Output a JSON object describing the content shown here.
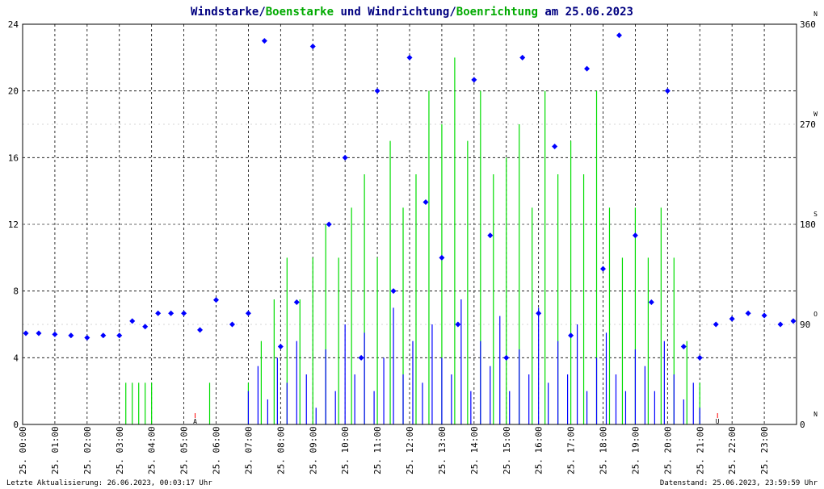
{
  "title": {
    "part1": "Windstarke",
    "sep1": "/",
    "part2": "Boenstarke",
    "part3": " und ",
    "part4": "Windrichtung",
    "sep2": "/",
    "part5": "Boenrichtung",
    "part6": " am 25.06.2023"
  },
  "colors": {
    "wind": "#0000ff",
    "gust": "#00dd00",
    "title_dark": "#000080",
    "title_green": "#00aa00",
    "marker": "#ff0000",
    "grid": "#000000"
  },
  "footer": {
    "left": "Letzte Aktualisierung: 26.06.2023, 00:03:17 Uhr",
    "right": "Datenstand: 25.06.2023, 23:59:59 Uhr"
  },
  "chart_data": {
    "type": "line",
    "x_range": [
      0,
      24
    ],
    "x_ticks": [
      "25. 00:00",
      "25. 01:00",
      "25. 02:00",
      "25. 03:00",
      "25. 04:00",
      "25. 05:00",
      "25. 06:00",
      "25. 07:00",
      "25. 08:00",
      "25. 09:00",
      "25. 10:00",
      "25. 11:00",
      "25. 12:00",
      "25. 13:00",
      "25. 14:00",
      "25. 15:00",
      "25. 16:00",
      "25. 17:00",
      "25. 18:00",
      "25. 19:00",
      "25. 20:00",
      "25. 21:00",
      "25. 22:00",
      "25. 23:00"
    ],
    "y_left": {
      "range": [
        0,
        24
      ],
      "ticks": [
        "0",
        "4",
        "8",
        "12",
        "16",
        "20",
        "24"
      ]
    },
    "y_right": {
      "range": [
        0,
        360
      ],
      "ticks": [
        {
          "value": 0,
          "label": "0",
          "dir": "N"
        },
        {
          "value": 90,
          "label": "90",
          "dir": "O"
        },
        {
          "value": 180,
          "label": "180",
          "dir": "S"
        },
        {
          "value": 270,
          "label": "270",
          "dir": "W"
        },
        {
          "value": 360,
          "label": "360",
          "dir": "N"
        }
      ]
    },
    "grid": true,
    "markers": [
      {
        "hour": 5.35,
        "label": "A"
      },
      {
        "hour": 21.55,
        "label": "U"
      }
    ],
    "series": [
      {
        "name": "Windstarke",
        "color": "#0000ff",
        "x": [
          7.0,
          7.3,
          7.6,
          7.9,
          8.2,
          8.5,
          8.8,
          9.1,
          9.4,
          9.7,
          10.0,
          10.3,
          10.6,
          10.9,
          11.2,
          11.5,
          11.8,
          12.1,
          12.4,
          12.7,
          13.0,
          13.3,
          13.6,
          13.9,
          14.2,
          14.5,
          14.8,
          15.1,
          15.4,
          15.7,
          16.0,
          16.3,
          16.6,
          16.9,
          17.2,
          17.5,
          17.8,
          18.1,
          18.4,
          18.7,
          19.0,
          19.3,
          19.6,
          19.9,
          20.2,
          20.5,
          20.8,
          21.0
        ],
        "values": [
          2,
          3.5,
          1.5,
          4,
          2.5,
          5,
          3,
          1,
          4.5,
          2,
          6,
          3,
          5.5,
          2,
          4,
          7,
          3,
          5,
          2.5,
          6,
          4,
          3,
          7.5,
          2,
          5,
          3.5,
          6.5,
          2,
          4.5,
          3,
          7,
          2.5,
          5,
          3,
          6,
          2,
          4,
          5.5,
          3,
          2,
          4.5,
          3.5,
          2,
          5,
          3,
          1.5,
          2.5,
          1
        ]
      },
      {
        "name": "Boenstarke",
        "color": "#00dd00",
        "x": [
          3.2,
          3.4,
          3.6,
          3.8,
          4.0,
          5.8,
          7.0,
          7.4,
          7.8,
          8.2,
          8.6,
          9.0,
          9.4,
          9.8,
          10.2,
          10.6,
          11.0,
          11.4,
          11.8,
          12.2,
          12.6,
          13.0,
          13.4,
          13.8,
          14.2,
          14.6,
          15.0,
          15.4,
          15.8,
          16.2,
          16.6,
          17.0,
          17.4,
          17.8,
          18.2,
          18.6,
          19.0,
          19.4,
          19.8,
          20.2,
          20.6,
          21.0
        ],
        "values": [
          2.5,
          2.5,
          2.5,
          2.5,
          2.5,
          2.5,
          2.5,
          5,
          7.5,
          10,
          7.5,
          10,
          12,
          10,
          13,
          15,
          10,
          17,
          13,
          15,
          20,
          18,
          22,
          17,
          20,
          15,
          16,
          18,
          13,
          20,
          15,
          17,
          15,
          20,
          13,
          10,
          13,
          10,
          13,
          10,
          5,
          2.5
        ]
      },
      {
        "name": "Windrichtung",
        "color": "#0000ff",
        "x": [
          0.1,
          0.5,
          1.0,
          1.5,
          2.0,
          2.5,
          3.0,
          3.4,
          3.8,
          4.2,
          4.6,
          5.0,
          5.5,
          6.0,
          6.5,
          7.0,
          7.5,
          8.0,
          8.5,
          9.0,
          9.5,
          10.0,
          10.5,
          11.0,
          11.5,
          12.0,
          12.5,
          13.0,
          13.5,
          14.0,
          14.5,
          15.0,
          15.5,
          16.0,
          16.5,
          17.0,
          17.5,
          18.0,
          18.5,
          19.0,
          19.5,
          20.0,
          20.5,
          21.0,
          21.5,
          22.0,
          22.5,
          23.0,
          23.5,
          23.9
        ],
        "values": [
          82,
          82,
          81,
          80,
          78,
          80,
          80,
          93,
          88,
          100,
          100,
          100,
          85,
          112,
          90,
          100,
          345,
          70,
          110,
          340,
          180,
          240,
          60,
          300,
          120,
          330,
          200,
          150,
          90,
          310,
          170,
          60,
          330,
          100,
          250,
          80,
          320,
          140,
          350,
          170,
          110,
          300,
          70,
          60,
          90,
          95,
          100,
          98,
          90,
          93
        ]
      }
    ]
  }
}
